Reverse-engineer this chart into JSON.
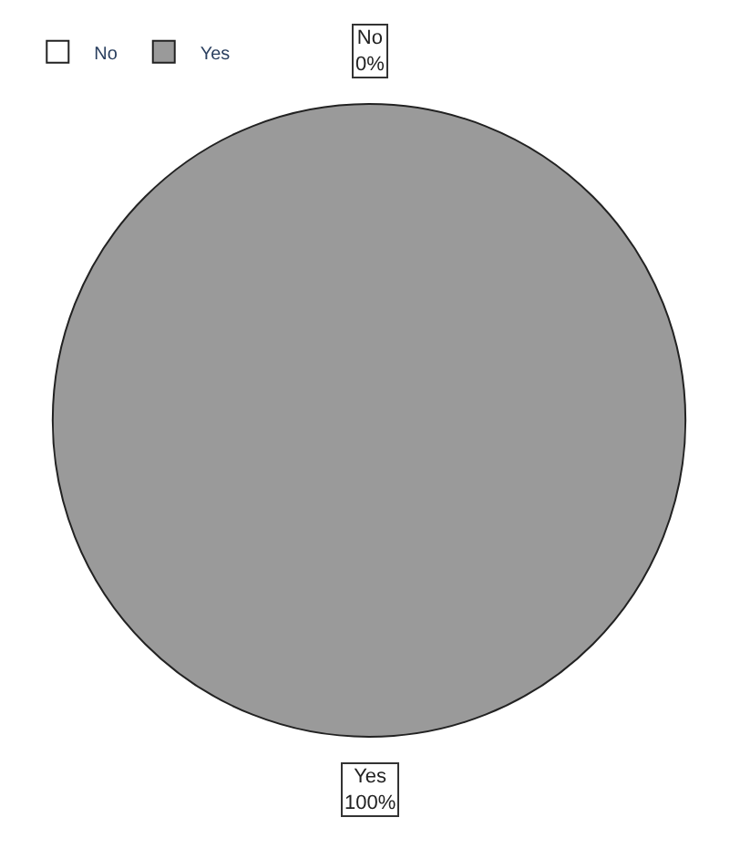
{
  "chart_data": {
    "type": "pie",
    "categories": [
      "No",
      "Yes"
    ],
    "values": [
      0,
      100
    ],
    "colors": [
      "#ffffff",
      "#9a9a9a"
    ],
    "value_labels": [
      "0%",
      "100%"
    ],
    "legend": "top left"
  }
}
